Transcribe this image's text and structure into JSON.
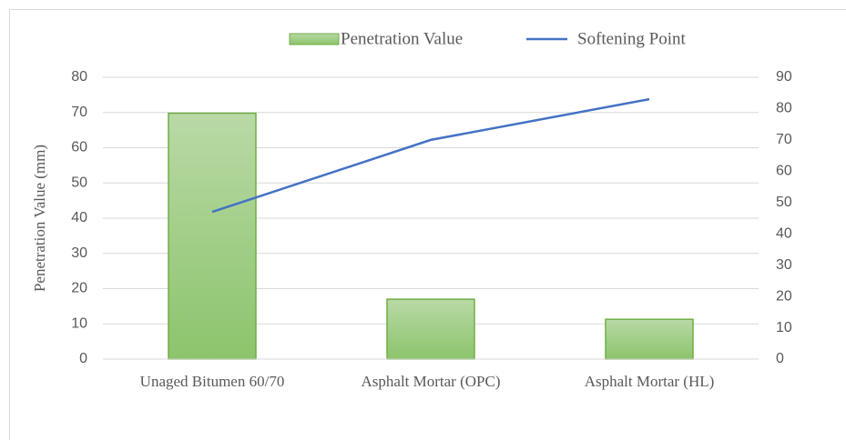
{
  "chart_data": {
    "type": "bar",
    "categories": [
      "Unaged Bitumen 60/70",
      "Asphalt Mortar (OPC)",
      "Asphalt Mortar (HL)"
    ],
    "series": [
      {
        "name": "Penetration Value",
        "type": "bar",
        "color": "#70ad47",
        "values": [
          69.8,
          17,
          11.3
        ]
      },
      {
        "name": "Softening Point",
        "type": "line",
        "color": "#4472c4",
        "axis": "y2",
        "values": [
          47,
          70,
          83
        ]
      }
    ],
    "y_label": "Penetration Value (mm)",
    "ylim": [
      0,
      80
    ],
    "yticks": [
      0,
      10,
      20,
      30,
      40,
      50,
      60,
      70,
      80
    ],
    "y2lim": [
      0,
      90
    ],
    "y2ticks": [
      0,
      10,
      20,
      30,
      40,
      50,
      60,
      70,
      80,
      90
    ],
    "grid": true,
    "legend": "top"
  }
}
